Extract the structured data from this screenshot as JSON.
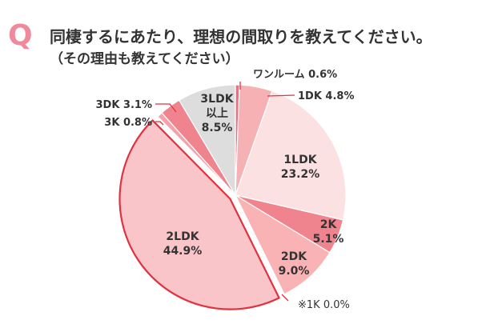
{
  "question": {
    "mark": "Q",
    "title": "同棲するにあたり、理想の間取りを教えてください。",
    "subtitle": "（その理由も教えてください）"
  },
  "chart_data": {
    "type": "pie",
    "start": "top",
    "direction": "clockwise",
    "slices": [
      {
        "label": "ワンルーム",
        "value": 0.6,
        "value_text": "0.6%",
        "color": "#ee6f7f",
        "label_pos": "outside"
      },
      {
        "label": "1DK",
        "value": 4.8,
        "value_text": "4.8%",
        "color": "#f5b1b4",
        "label_pos": "outside"
      },
      {
        "label": "1LDK",
        "value": 23.2,
        "value_text": "23.2%",
        "color": "#fce1e3",
        "label_pos": "inside"
      },
      {
        "label": "2K",
        "value": 5.1,
        "value_text": "5.1%",
        "color": "#f0848e",
        "label_pos": "inside"
      },
      {
        "label": "2DK",
        "value": 9.0,
        "value_text": "9.0%",
        "color": "#f9b3b5",
        "label_pos": "inside"
      },
      {
        "label": "2LDK",
        "value": 44.9,
        "value_text": "44.9%",
        "color": "#f9c5c8",
        "label_pos": "inside",
        "highlight": true
      },
      {
        "label": "3K",
        "value": 0.8,
        "value_text": "0.8%",
        "color": "#f6a1a9",
        "label_pos": "outside"
      },
      {
        "label": "3DK",
        "value": 3.1,
        "value_text": "3.1%",
        "color": "#f0848e",
        "label_pos": "outside"
      },
      {
        "label": "3LDK\n以上",
        "value": 8.5,
        "value_text": "8.5%",
        "color": "#dddddd",
        "label_pos": "inside"
      }
    ],
    "note": "※1K 0.0%",
    "highlight_color": "#e2323f"
  }
}
